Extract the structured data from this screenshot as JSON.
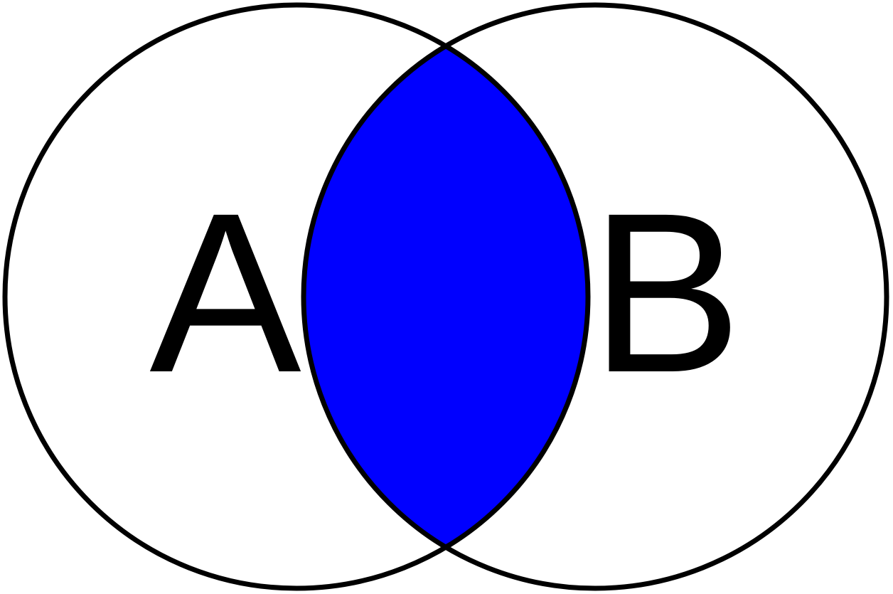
{
  "diagram": {
    "type": "venn",
    "highlighted_region": "intersection",
    "colors": {
      "intersection_fill": "#0000ff",
      "outline": "#000000",
      "background": "#ffffff"
    },
    "sets": [
      {
        "label": "A"
      },
      {
        "label": "B"
      }
    ]
  }
}
